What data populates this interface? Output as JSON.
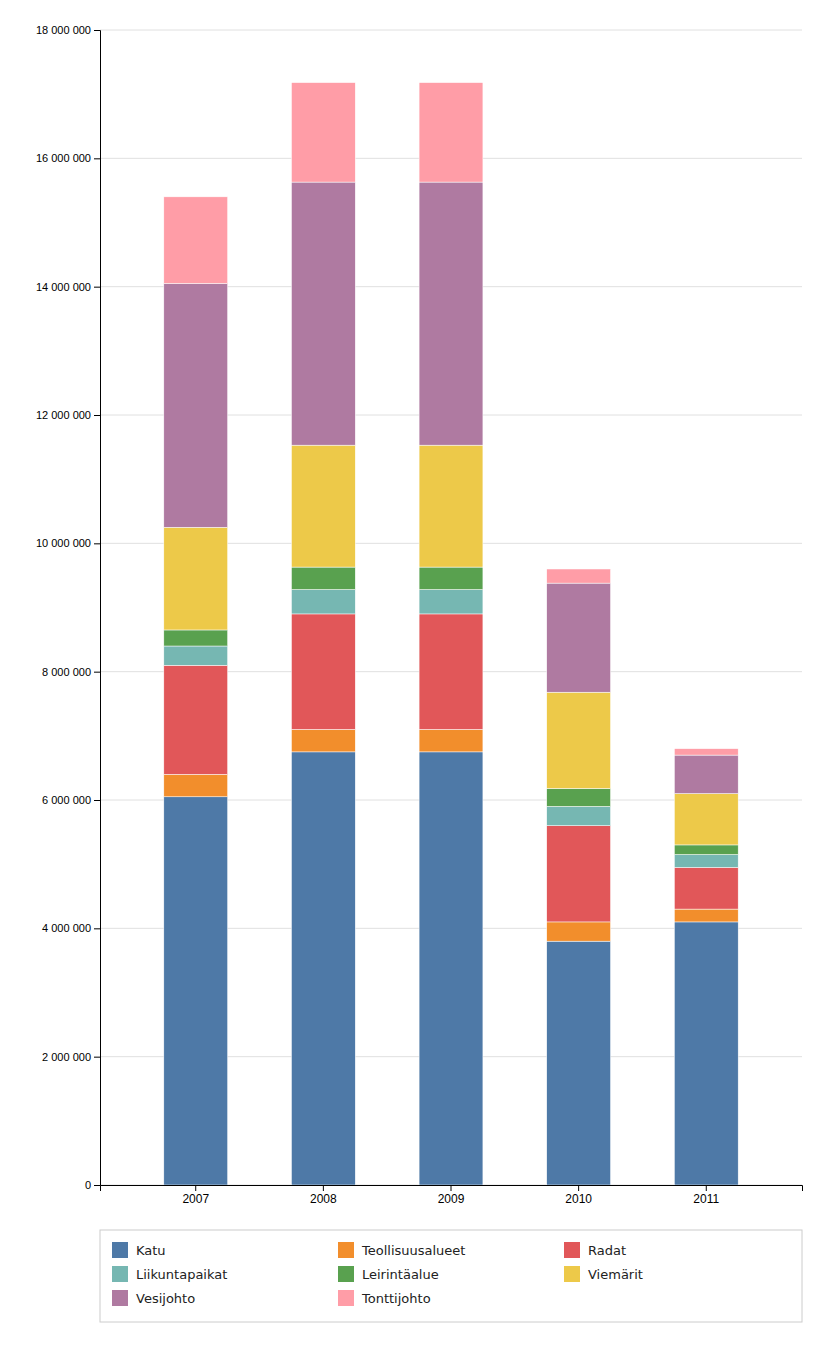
{
  "chart_data": {
    "type": "bar",
    "stacked": true,
    "categories": [
      "2007",
      "2008",
      "2009",
      "2010",
      "2011"
    ],
    "series": [
      {
        "name": "Katu",
        "values": [
          6050000,
          6750000,
          6750000,
          3800000,
          4100000
        ]
      },
      {
        "name": "Teollisuusalueet",
        "values": [
          350000,
          350000,
          350000,
          300000,
          200000
        ]
      },
      {
        "name": "Radat",
        "values": [
          1700000,
          1800000,
          1800000,
          1500000,
          650000
        ]
      },
      {
        "name": "Liikuntapaikat",
        "values": [
          300000,
          380000,
          380000,
          300000,
          200000
        ]
      },
      {
        "name": "Leirintäalue",
        "values": [
          250000,
          350000,
          350000,
          280000,
          150000
        ]
      },
      {
        "name": "Viemärit",
        "values": [
          1600000,
          1900000,
          1900000,
          1500000,
          800000
        ]
      },
      {
        "name": "Vesijohto",
        "values": [
          3800000,
          4100000,
          4100000,
          1700000,
          600000
        ]
      },
      {
        "name": "Tonttijohto",
        "values": [
          1350000,
          1550000,
          1550000,
          220000,
          100000
        ]
      }
    ],
    "ylim": [
      0,
      18000000
    ],
    "yticks": [
      0,
      {
        "value": 2000000,
        "label": "2 000 000"
      },
      {
        "value": 4000000,
        "label": "4 000 000"
      },
      {
        "value": 6000000,
        "label": "6 000 000"
      },
      {
        "value": 8000000,
        "label": "8 000 000"
      },
      {
        "value": 10000000,
        "label": "10 000 000"
      },
      {
        "value": 12000000,
        "label": "12 000 000"
      },
      {
        "value": 14000000,
        "label": "14 000 000"
      },
      {
        "value": 16000000,
        "label": "16 000 000"
      },
      {
        "value": 18000000,
        "label": "18 000 000"
      }
    ],
    "grid": true,
    "legend": "bottom"
  }
}
